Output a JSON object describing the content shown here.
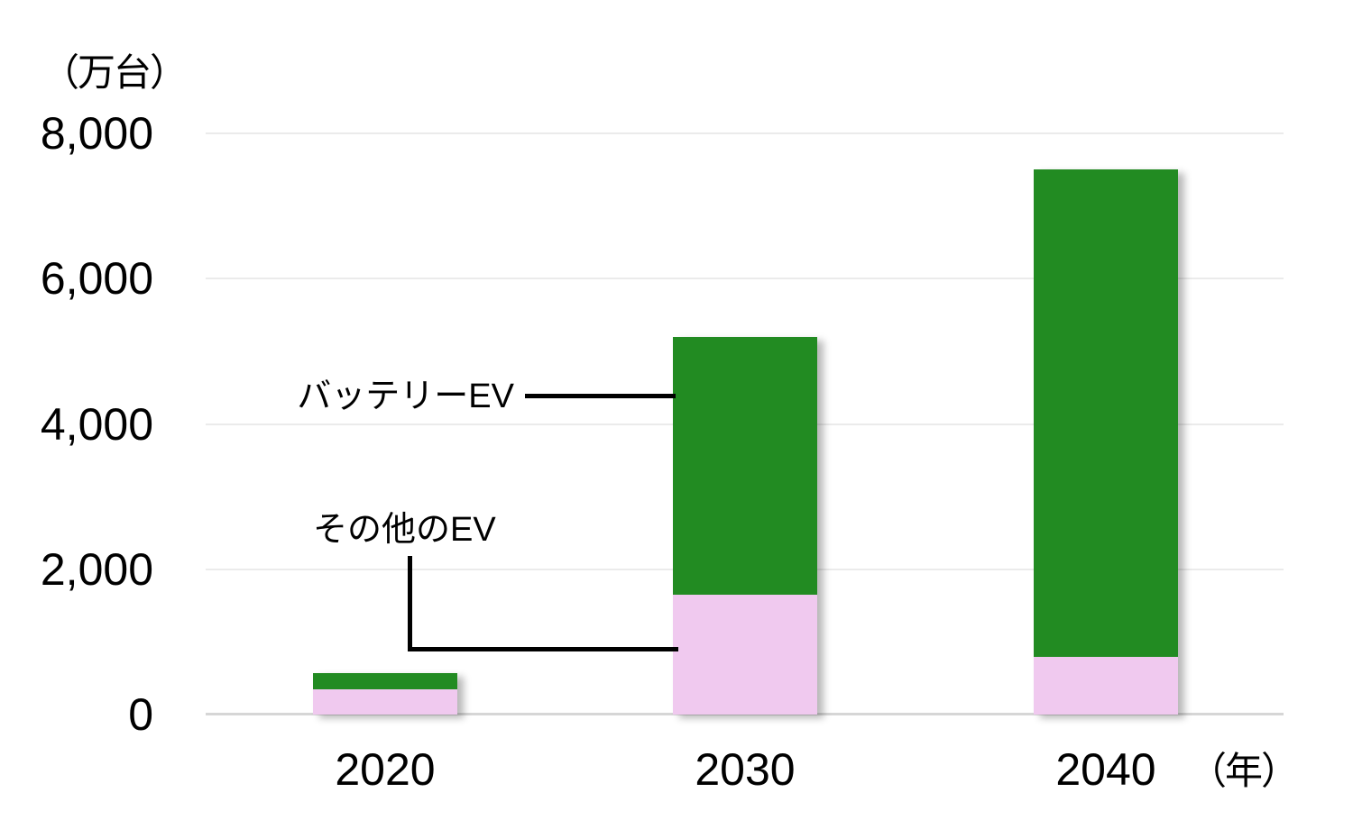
{
  "chart_data": {
    "type": "bar",
    "stacked": true,
    "title": "",
    "unit_label": "（万台）",
    "x_axis_suffix": "（年）",
    "categories": [
      "2020",
      "2030",
      "2040"
    ],
    "series": [
      {
        "name": "その他のEV",
        "position": "bottom",
        "color": "#f0c9ef",
        "values": [
          350,
          1650,
          800
        ]
      },
      {
        "name": "バッテリーEV",
        "position": "top",
        "color": "#228b22",
        "values": [
          220,
          3550,
          6700
        ]
      }
    ],
    "totals": [
      570,
      5200,
      7500
    ],
    "ylim": [
      0,
      8000
    ],
    "yticks": [
      0,
      2000,
      4000,
      6000,
      8000
    ],
    "ytick_labels": [
      "0",
      "2,000",
      "4,000",
      "6,000",
      "8,000"
    ],
    "grid": "horizontal",
    "legend_style": "callout-labels-with-connector-lines"
  },
  "colors": {
    "battery_ev": "#228b22",
    "other_ev": "#f0c9ef",
    "gridline": "#ebebeb",
    "axis_line": "#d6d6d6",
    "connector": "#000000",
    "text": "#000000",
    "background": "#ffffff"
  }
}
